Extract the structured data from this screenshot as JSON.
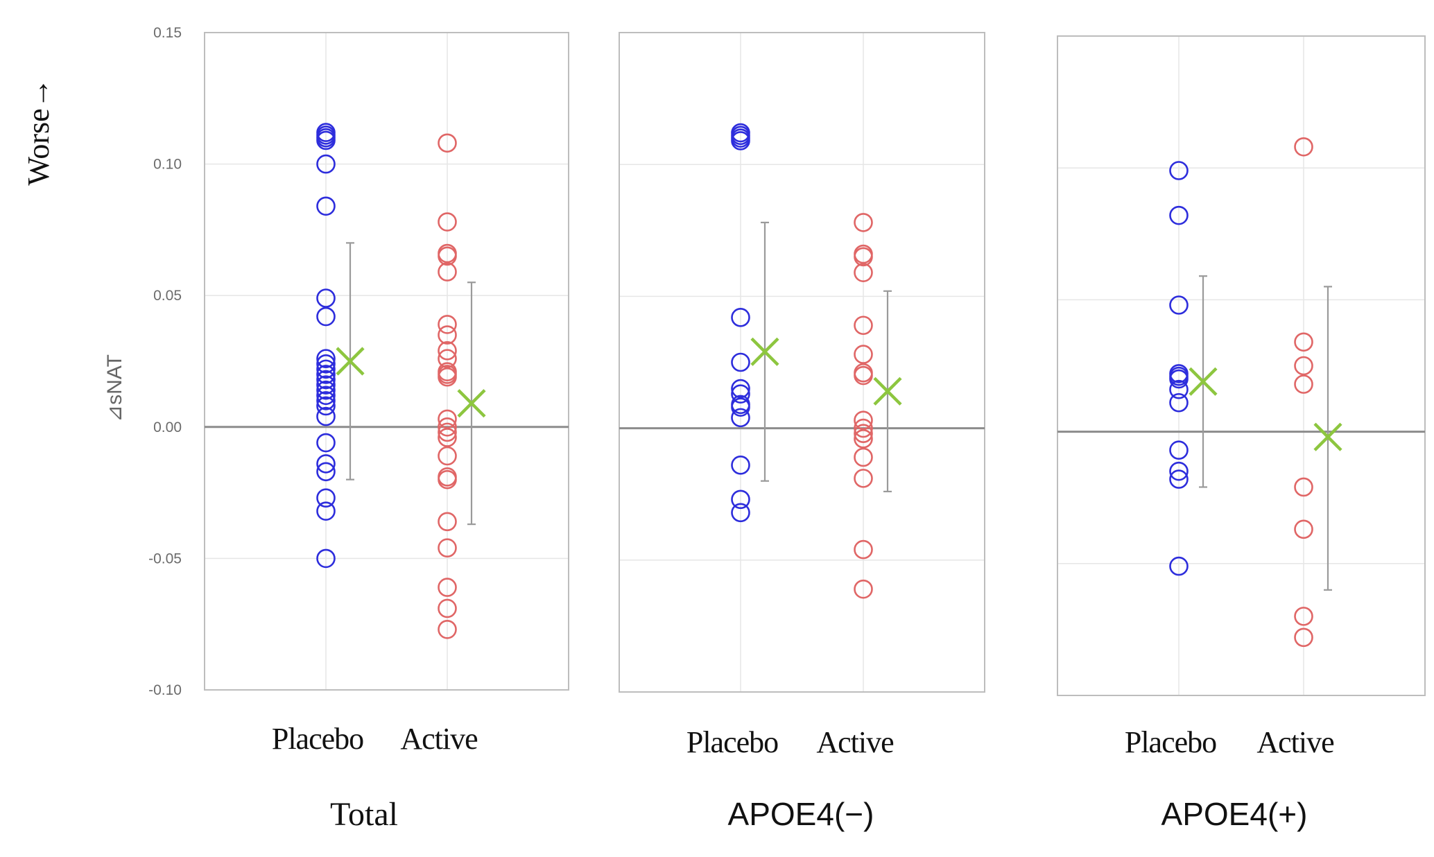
{
  "chart_data": {
    "type": "scatter",
    "title": "",
    "ylabel": "⊿sNAT",
    "direction_label": "Worse→",
    "ylim": [
      -0.1,
      0.15
    ],
    "yticks": [
      0.15,
      0.1,
      0.05,
      0.0,
      -0.05,
      -0.1
    ],
    "ytick_labels": [
      "0.15",
      "0.10",
      "0.05",
      "0.00",
      "-0.05",
      "-0.10"
    ],
    "colors": {
      "placebo": "#2d2ddc",
      "active": "#e06666",
      "mean": "#8dc63f",
      "errorbar": "#9a9a9a",
      "grid": "#e6e6e6",
      "frame": "#bdbdbd",
      "zero_line": "#8c8c8c"
    },
    "panels": [
      {
        "name": "Total",
        "groups": [
          {
            "label": "Placebo",
            "points": [
              0.112,
              0.111,
              0.11,
              0.109,
              0.1,
              0.084,
              0.049,
              0.042,
              0.026,
              0.024,
              0.022,
              0.02,
              0.018,
              0.016,
              0.014,
              0.012,
              0.01,
              0.008,
              0.004,
              -0.006,
              -0.014,
              -0.017,
              -0.027,
              -0.032,
              -0.05
            ],
            "mean": 0.025,
            "err_low": -0.02,
            "err_high": 0.07
          },
          {
            "label": "Active",
            "points": [
              0.108,
              0.078,
              0.066,
              0.065,
              0.059,
              0.039,
              0.035,
              0.029,
              0.026,
              0.021,
              0.02,
              0.019,
              0.003,
              0.0,
              -0.002,
              -0.004,
              -0.011,
              -0.019,
              -0.02,
              -0.036,
              -0.046,
              -0.061,
              -0.069,
              -0.077
            ],
            "mean": 0.009,
            "err_low": -0.037,
            "err_high": 0.055
          }
        ]
      },
      {
        "name": "APOE4(−)",
        "groups": [
          {
            "label": "Placebo",
            "points": [
              0.112,
              0.111,
              0.11,
              0.109,
              0.042,
              0.025,
              0.015,
              0.013,
              0.009,
              0.008,
              0.004,
              -0.014,
              -0.027,
              -0.032
            ],
            "mean": 0.029,
            "err_low": -0.02,
            "err_high": 0.078
          },
          {
            "label": "Active",
            "points": [
              0.078,
              0.066,
              0.065,
              0.059,
              0.039,
              0.028,
              0.021,
              0.02,
              0.003,
              0.0,
              -0.002,
              -0.004,
              -0.011,
              -0.019,
              -0.046,
              -0.061
            ],
            "mean": 0.014,
            "err_low": -0.024,
            "err_high": 0.052
          }
        ]
      },
      {
        "name": "APOE4(+)",
        "groups": [
          {
            "label": "Placebo",
            "points": [
              0.099,
              0.082,
              0.048,
              0.022,
              0.021,
              0.02,
              0.016,
              0.011,
              -0.007,
              -0.015,
              -0.018,
              -0.051
            ],
            "mean": 0.019,
            "err_low": -0.021,
            "err_high": 0.059
          },
          {
            "label": "Active",
            "points": [
              0.108,
              0.034,
              0.025,
              0.018,
              -0.021,
              -0.037,
              -0.07,
              -0.078
            ],
            "mean": -0.002,
            "err_low": -0.06,
            "err_high": 0.055
          }
        ]
      }
    ]
  }
}
